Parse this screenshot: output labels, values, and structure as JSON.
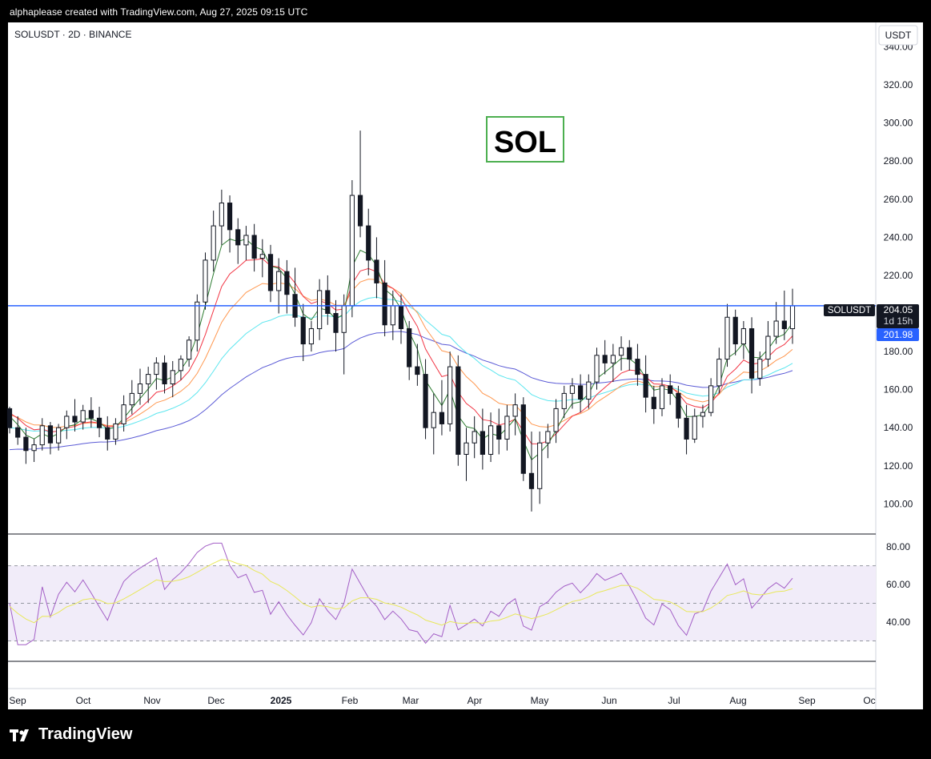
{
  "credit": "alphaplease created with TradingView.com, Aug 27, 2025 09:15 UTC",
  "brand": "TradingView",
  "symbol_header": "SOLUSDT · 2D · BINANCE",
  "currency_label": "USDT",
  "annotation_box": "SOL",
  "price_tag": {
    "symbol": "SOLUSDT",
    "price": "204.05",
    "countdown": "1d 15h",
    "ma_price": "201.98"
  },
  "colors": {
    "up": "#131722",
    "down": "#131722",
    "ema_fast": "#2e7d32",
    "ema_red": "#f23645",
    "ema_orange": "#ff9850",
    "ema_cyan": "#5ce6ef",
    "sma_long": "#5b5bd6",
    "hline": "#2962ff",
    "rsi": "#a35fc6",
    "rsi_ma": "#e8e85a",
    "rsi_band": "#f1ecf9",
    "annotation_border": "#4caf50"
  },
  "chart_data": {
    "type": "candlestick",
    "interval": "2D",
    "ylim": [
      85,
      352
    ],
    "y_ticks": [
      "340.00",
      "320.00",
      "300.00",
      "280.00",
      "260.00",
      "240.00",
      "220.00",
      "200.00",
      "180.00",
      "160.00",
      "140.00",
      "120.00",
      "100.00"
    ],
    "x_ticks": [
      "Sep",
      "Oct",
      "Nov",
      "Dec",
      "2025",
      "Feb",
      "Mar",
      "Apr",
      "May",
      "Jun",
      "Jul",
      "Aug",
      "Sep",
      "Oc"
    ],
    "horizontal_line": 204.05,
    "candles_ohlc": [
      [
        150,
        151,
        137,
        140
      ],
      [
        140,
        146,
        131,
        135
      ],
      [
        135,
        140,
        121,
        128
      ],
      [
        128,
        134,
        122,
        131
      ],
      [
        131,
        145,
        128,
        141
      ],
      [
        141,
        143,
        126,
        132
      ],
      [
        132,
        142,
        128,
        140
      ],
      [
        140,
        149,
        134,
        146
      ],
      [
        146,
        155,
        138,
        143
      ],
      [
        143,
        152,
        139,
        149
      ],
      [
        149,
        156,
        140,
        145
      ],
      [
        145,
        151,
        135,
        140
      ],
      [
        140,
        146,
        128,
        134
      ],
      [
        134,
        145,
        131,
        142
      ],
      [
        142,
        157,
        138,
        152
      ],
      [
        152,
        165,
        147,
        158
      ],
      [
        158,
        171,
        152,
        163
      ],
      [
        163,
        172,
        153,
        168
      ],
      [
        168,
        177,
        160,
        174
      ],
      [
        174,
        178,
        158,
        163
      ],
      [
        163,
        175,
        156,
        170
      ],
      [
        170,
        178,
        165,
        176
      ],
      [
        176,
        188,
        172,
        186
      ],
      [
        186,
        210,
        180,
        206
      ],
      [
        206,
        232,
        202,
        228
      ],
      [
        228,
        254,
        222,
        246
      ],
      [
        246,
        265,
        236,
        258
      ],
      [
        258,
        262,
        232,
        244
      ],
      [
        244,
        250,
        226,
        236
      ],
      [
        236,
        246,
        228,
        241
      ],
      [
        241,
        247,
        222,
        229
      ],
      [
        229,
        239,
        219,
        231
      ],
      [
        231,
        236,
        206,
        212
      ],
      [
        212,
        229,
        200,
        222
      ],
      [
        222,
        228,
        200,
        210
      ],
      [
        210,
        224,
        193,
        198
      ],
      [
        198,
        205,
        175,
        184
      ],
      [
        184,
        196,
        180,
        192
      ],
      [
        192,
        218,
        186,
        212
      ],
      [
        212,
        220,
        194,
        200
      ],
      [
        200,
        207,
        180,
        190
      ],
      [
        190,
        210,
        168,
        204
      ],
      [
        204,
        270,
        198,
        262
      ],
      [
        262,
        296,
        240,
        246
      ],
      [
        246,
        255,
        220,
        228
      ],
      [
        228,
        240,
        208,
        216
      ],
      [
        216,
        228,
        188,
        194
      ],
      [
        194,
        212,
        186,
        204
      ],
      [
        204,
        210,
        184,
        192
      ],
      [
        192,
        196,
        165,
        172
      ],
      [
        172,
        184,
        162,
        168
      ],
      [
        168,
        176,
        134,
        140
      ],
      [
        140,
        158,
        126,
        148
      ],
      [
        148,
        165,
        136,
        142
      ],
      [
        142,
        180,
        138,
        172
      ],
      [
        172,
        178,
        120,
        126
      ],
      [
        126,
        140,
        112,
        132
      ],
      [
        132,
        146,
        124,
        138
      ],
      [
        138,
        150,
        118,
        126
      ],
      [
        126,
        148,
        122,
        141
      ],
      [
        141,
        150,
        126,
        134
      ],
      [
        134,
        152,
        128,
        146
      ],
      [
        146,
        158,
        136,
        152
      ],
      [
        152,
        156,
        112,
        116
      ],
      [
        116,
        138,
        96,
        108
      ],
      [
        108,
        138,
        100,
        132
      ],
      [
        132,
        142,
        124,
        138
      ],
      [
        138,
        155,
        132,
        150
      ],
      [
        150,
        162,
        145,
        158
      ],
      [
        158,
        166,
        150,
        162
      ],
      [
        162,
        168,
        148,
        155
      ],
      [
        155,
        168,
        150,
        164
      ],
      [
        164,
        182,
        160,
        178
      ],
      [
        178,
        186,
        168,
        174
      ],
      [
        174,
        184,
        164,
        178
      ],
      [
        178,
        188,
        170,
        182
      ],
      [
        182,
        186,
        170,
        176
      ],
      [
        176,
        184,
        162,
        168
      ],
      [
        168,
        178,
        148,
        156
      ],
      [
        156,
        162,
        142,
        150
      ],
      [
        150,
        166,
        146,
        162
      ],
      [
        162,
        168,
        152,
        158
      ],
      [
        158,
        162,
        140,
        145
      ],
      [
        145,
        152,
        126,
        134
      ],
      [
        134,
        150,
        132,
        146
      ],
      [
        146,
        152,
        140,
        148
      ],
      [
        148,
        166,
        146,
        162
      ],
      [
        162,
        182,
        158,
        176
      ],
      [
        176,
        205,
        172,
        198
      ],
      [
        198,
        202,
        178,
        184
      ],
      [
        184,
        196,
        176,
        192
      ],
      [
        192,
        198,
        158,
        166
      ],
      [
        166,
        180,
        162,
        176
      ],
      [
        176,
        196,
        172,
        188
      ],
      [
        188,
        206,
        184,
        196
      ],
      [
        196,
        212,
        186,
        192
      ],
      [
        192,
        213,
        184,
        204
      ]
    ],
    "rsi": {
      "ylim": [
        20,
        86
      ],
      "y_ticks": [
        "80.00",
        "60.00",
        "40.00"
      ],
      "upper_band": 70,
      "middle": 50,
      "lower_band": 30
    }
  }
}
